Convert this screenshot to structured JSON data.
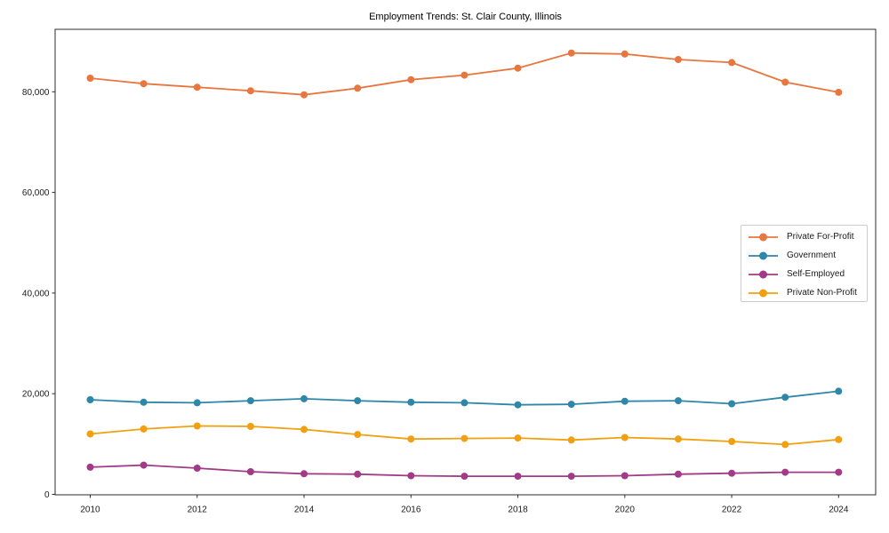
{
  "page": {
    "background": "#ffffff"
  },
  "chart_data": {
    "type": "line",
    "title": "Employment Trends: St. Clair County, Illinois",
    "xlabel": "",
    "ylabel": "",
    "grid": false,
    "x": [
      2010,
      2011,
      2012,
      2013,
      2014,
      2015,
      2016,
      2017,
      2018,
      2019,
      2020,
      2021,
      2022,
      2023,
      2024
    ],
    "series": [
      {
        "name": "Private For-Profit",
        "color": "#E8763F",
        "values": [
          82700,
          81600,
          80900,
          80200,
          79400,
          80700,
          82400,
          83300,
          84700,
          87700,
          87500,
          86400,
          85800,
          81900,
          79900
        ]
      },
      {
        "name": "Government",
        "color": "#2E86A8",
        "values": [
          18800,
          18300,
          18200,
          18600,
          19000,
          18600,
          18300,
          18200,
          17800,
          17900,
          18500,
          18600,
          18000,
          19300,
          20500
        ]
      },
      {
        "name": "Self-Employed",
        "color": "#A23A87",
        "values": [
          5400,
          5800,
          5200,
          4500,
          4100,
          4000,
          3700,
          3600,
          3600,
          3600,
          3700,
          4000,
          4200,
          4400,
          4400
        ]
      },
      {
        "name": "Private Non-Profit",
        "color": "#F0A010",
        "values": [
          12000,
          13000,
          13600,
          13500,
          12900,
          11900,
          11000,
          11100,
          11200,
          10800,
          11300,
          11000,
          10500,
          9900,
          10900
        ]
      }
    ],
    "xticks": [
      2010,
      2012,
      2014,
      2016,
      2018,
      2020,
      2022,
      2024
    ],
    "yticks": [
      0,
      20000,
      40000,
      60000,
      80000
    ],
    "ytick_labels": [
      "0",
      "20,000",
      "40,000",
      "60,000",
      "80,000"
    ],
    "xlim": [
      2009.3,
      2024.7
    ],
    "ylim": [
      0,
      92400
    ],
    "legend": {
      "position": "center-right"
    }
  }
}
